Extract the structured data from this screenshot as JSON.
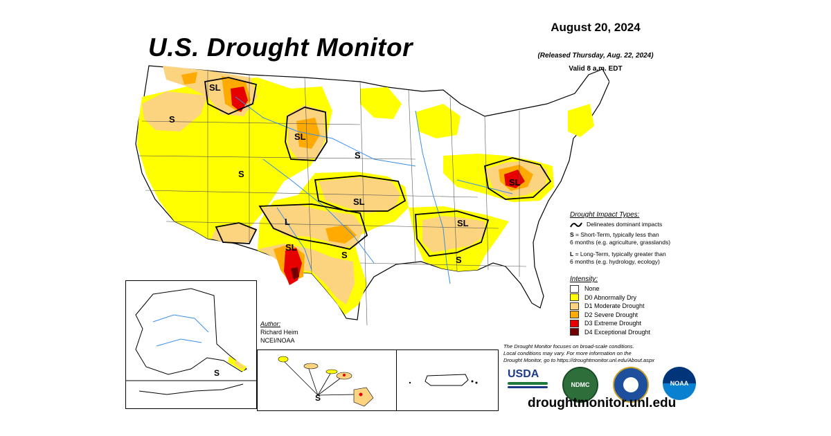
{
  "header": {
    "title": "U.S. Drought Monitor",
    "date": "August 20, 2024",
    "released": "(Released Thursday, Aug. 22, 2024)",
    "valid": "Valid 8 a.m. EDT"
  },
  "map_labels": {
    "s": "S",
    "sl": "SL",
    "l": "L"
  },
  "impact_legend": {
    "heading": "Drought Impact Types:",
    "line_item": "Delineates dominant impacts",
    "short_term_key": "S",
    "short_term_text": "= Short-Term, typically less than",
    "short_term_text2": "6 months (e.g. agriculture, grasslands)",
    "long_term_key": "L",
    "long_term_text": "= Long-Term, typically greater than",
    "long_term_text2": "6 months (e.g. hydrology, ecology)"
  },
  "intensity_legend": {
    "heading": "Intensity:",
    "items": [
      {
        "label": "None",
        "color": "#ffffff"
      },
      {
        "label": "D0 Abnormally Dry",
        "color": "#ffff00"
      },
      {
        "label": "D1 Moderate Drought",
        "color": "#fcd37f"
      },
      {
        "label": "D2 Severe Drought",
        "color": "#ffaa00"
      },
      {
        "label": "D3 Extreme Drought",
        "color": "#e60000"
      },
      {
        "label": "D4 Exceptional Drought",
        "color": "#730000"
      }
    ]
  },
  "author": {
    "heading": "Author:",
    "name": "Richard Heim",
    "org": "NCEI/NOAA"
  },
  "disclaimer": {
    "line1": "The Drought Monitor focuses on broad-scale conditions.",
    "line2": "Local conditions may vary. For more information on the",
    "line3": "Drought Monitor, go to https://droughtmonitor.unl.edu/About.aspx"
  },
  "logos": {
    "usda": "USDA",
    "ndmc": "NDMC",
    "noaa": "NOAA"
  },
  "footer": {
    "website": "droughtmonitor.unl.edu"
  }
}
